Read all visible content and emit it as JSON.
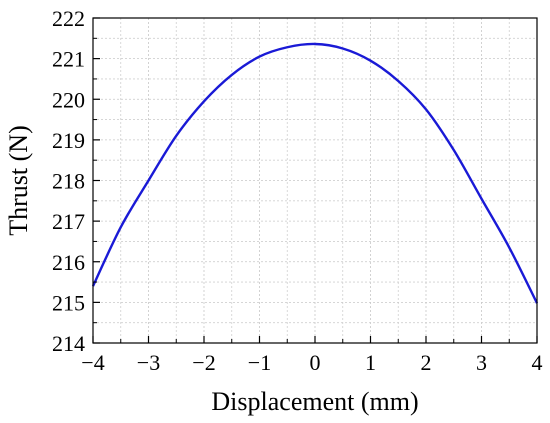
{
  "chart_data": {
    "type": "line",
    "xlabel": "Displacement (mm)",
    "ylabel": "Thrust (N)",
    "xlim": [
      -4,
      4
    ],
    "ylim": [
      214,
      222
    ],
    "x_ticks": [
      -4,
      -3,
      -2,
      -1,
      0,
      1,
      2,
      3,
      4
    ],
    "x_tick_labels": [
      "−4",
      "−3",
      "−2",
      "−1",
      "0",
      "1",
      "2",
      "3",
      "4"
    ],
    "y_ticks": [
      214,
      215,
      216,
      217,
      218,
      219,
      220,
      221,
      222
    ],
    "y_tick_labels": [
      "214",
      "215",
      "216",
      "217",
      "218",
      "219",
      "220",
      "221",
      "222"
    ],
    "grid": true,
    "minor_grid_per_major": 2,
    "series": [
      {
        "color": "#1a1ad6",
        "x": [
          -4,
          -3.5,
          -3,
          -2.5,
          -2,
          -1.5,
          -1,
          -0.5,
          0,
          0.5,
          1,
          1.5,
          2,
          2.5,
          3,
          3.5,
          4
        ],
        "y": [
          215.4,
          216.85,
          218.0,
          219.1,
          219.95,
          220.6,
          221.05,
          221.28,
          221.36,
          221.25,
          220.95,
          220.45,
          219.75,
          218.75,
          217.55,
          216.35,
          214.98
        ]
      }
    ]
  }
}
